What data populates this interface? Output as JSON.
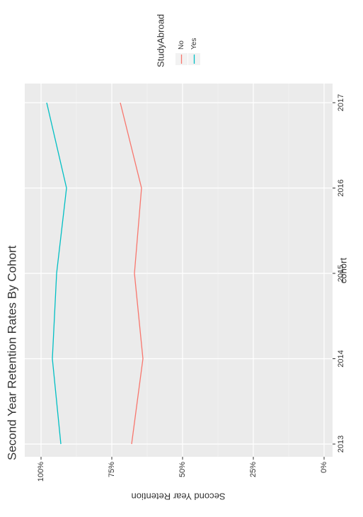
{
  "chart_data": {
    "type": "line",
    "title": "Second Year Retention Rates By Cohort",
    "x_label": "cohort",
    "y_label": "Second Year Retention",
    "categories": [
      "2013",
      "2014",
      "2015",
      "2016",
      "2017"
    ],
    "legend_title": "StudyAbroad",
    "series": [
      {
        "name": "No",
        "color": "#f8766d",
        "values": [
          68,
          64,
          67,
          64.5,
          72
        ]
      },
      {
        "name": "Yes",
        "color": "#00bfc4",
        "values": [
          93,
          96,
          94.5,
          91,
          98
        ]
      }
    ],
    "ylim": [
      -3,
      105.75
    ],
    "yticks": [
      {
        "value": 0,
        "label": "0%"
      },
      {
        "value": 25,
        "label": "25%"
      },
      {
        "value": 50,
        "label": "50%"
      },
      {
        "value": 75,
        "label": "75%"
      },
      {
        "value": 100,
        "label": "100%"
      }
    ],
    "grid": true
  }
}
